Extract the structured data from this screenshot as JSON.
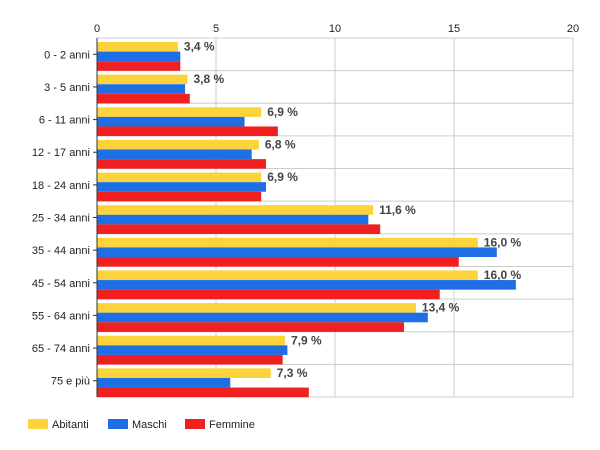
{
  "chart_data": {
    "type": "bar",
    "orientation": "horizontal",
    "categories": [
      "0 - 2 anni",
      "3 - 5 anni",
      "6 - 11 anni",
      "12 - 17 anni",
      "18 - 24 anni",
      "25 - 34 anni",
      "35 - 44 anni",
      "45 - 54 anni",
      "55 - 64 anni",
      "65 - 74 anni",
      "75 e più"
    ],
    "series": [
      {
        "name": "Abitanti",
        "color": "#FCD33A",
        "values": [
          3.4,
          3.8,
          6.9,
          6.8,
          6.9,
          11.6,
          16.0,
          16.0,
          13.4,
          7.9,
          7.3
        ]
      },
      {
        "name": "Maschi",
        "color": "#1E6FE6",
        "values": [
          3.5,
          3.7,
          6.2,
          6.5,
          7.1,
          11.4,
          16.8,
          17.6,
          13.9,
          8.0,
          5.6
        ]
      },
      {
        "name": "Femmine",
        "color": "#F02020",
        "values": [
          3.5,
          3.9,
          7.6,
          7.1,
          6.9,
          11.9,
          15.2,
          14.4,
          12.9,
          7.8,
          8.9
        ]
      }
    ],
    "data_labels": [
      "3,4 %",
      "3,8 %",
      "6,9 %",
      "6,8 %",
      "6,9 %",
      "11,6 %",
      "16,0 %",
      "16,0 %",
      "13,4 %",
      "7,9 %",
      "7,3 %"
    ],
    "x_ticks": [
      "0",
      "5",
      "10",
      "15",
      "20"
    ],
    "xlim": [
      0,
      20
    ],
    "grid": true,
    "legend_position": "bottom-left"
  }
}
